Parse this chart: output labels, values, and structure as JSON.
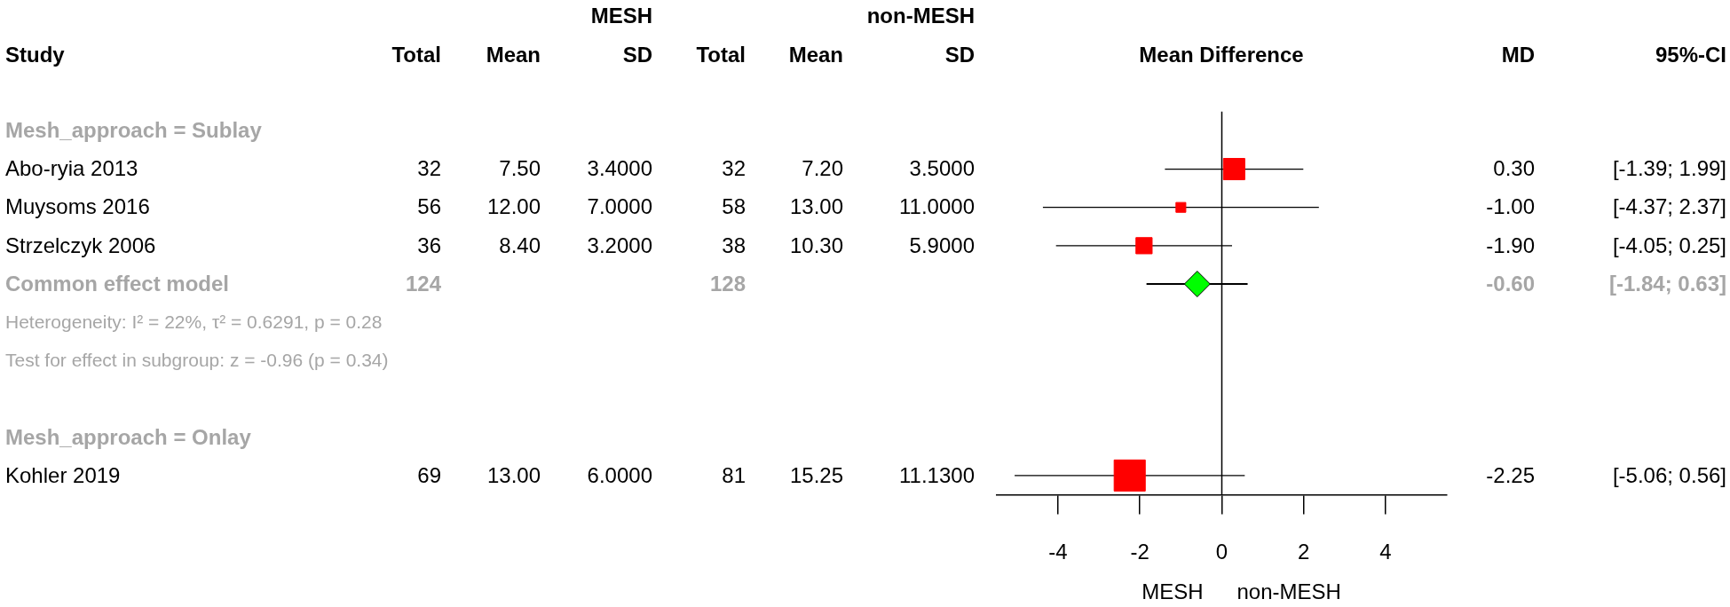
{
  "chart_data": [
    {
      "type": "other",
      "title": "MESH",
      "ylabel": "Study",
      "categories": [
        "Total",
        "Mean",
        "SD"
      ],
      "y_categories": [
        "Mesh_approach = Sublay",
        "Abo-ryia 2013",
        "Muysoms 2016",
        "Strzelczyk 2006",
        "Common effect model",
        "Mesh_approach = Onlay",
        "Kohler 2019"
      ],
      "cell_labels": [
        [
          null,
          null,
          null
        ],
        [
          "32",
          "7.50",
          "3.4000"
        ],
        [
          "56",
          "12.00",
          "7.0000"
        ],
        [
          "36",
          "8.40",
          "3.2000"
        ],
        [
          "124",
          null,
          null
        ],
        [
          null,
          null,
          null
        ],
        [
          "69",
          "13.00",
          "6.0000"
        ]
      ],
      "annotations": [
        "Heterogeneity: I² = 22%, τ² = 0.6291, p = 0.28",
        "Test for effect in subgroup: z = -0.96 (p = 0.34)"
      ]
    },
    {
      "type": "other",
      "title": "non-MESH",
      "categories": [
        "Total",
        "Mean",
        "SD"
      ],
      "cell_labels": [
        [
          null,
          null,
          null
        ],
        [
          "32",
          "7.20",
          "3.5000"
        ],
        [
          "58",
          "13.00",
          "11.0000"
        ],
        [
          "38",
          "10.30",
          "5.9000"
        ],
        [
          "128",
          null,
          null
        ],
        [
          null,
          null,
          null
        ],
        [
          "81",
          "15.25",
          "11.1300"
        ]
      ]
    },
    {
      "type": "scatter",
      "title": "Mean Difference",
      "orientation": "horizontal",
      "categories": [
        null,
        null,
        null,
        null,
        null,
        null,
        null,
        null,
        null,
        null
      ],
      "series": [
        {
          "color": "#ff0000",
          "marker": "square",
          "values": [
            null,
            0.3,
            -1.0,
            -1.9,
            null,
            null,
            null,
            null,
            null,
            -2.25
          ],
          "errors": [
            null,
            [
              -1.39,
              1.99
            ],
            [
              -4.37,
              2.37
            ],
            [
              -4.05,
              0.25
            ],
            null,
            null,
            null,
            null,
            null,
            [
              -5.06,
              0.56
            ]
          ],
          "sizes": [
            null,
            0.47,
            0.1,
            0.27,
            null,
            null,
            null,
            null,
            null,
            1
          ]
        },
        {
          "color": "#00ff00",
          "marker": "diamond",
          "values": [
            null,
            null,
            null,
            null,
            -0.6,
            null,
            null,
            null,
            null,
            null
          ],
          "errors": [
            null,
            null,
            null,
            null,
            [
              -1.84,
              0.63
            ],
            null,
            null,
            null,
            null,
            null
          ]
        }
      ],
      "xlim": [
        -5.5,
        5.5
      ],
      "xticks": [
        -4,
        -2,
        0,
        2,
        4
      ],
      "ref_lines": [
        {
          "axis": "x",
          "value": 0,
          "color": "#000000"
        }
      ],
      "annotations": [
        "MESH",
        "non-MESH"
      ]
    },
    {
      "type": "other",
      "categories": [
        "MD",
        "95%-CI"
      ],
      "cell_labels": [
        [
          null,
          null
        ],
        [
          "0.30",
          "[-1.39; 1.99]"
        ],
        [
          "-1.00",
          "[-4.37; 2.37]"
        ],
        [
          "-1.90",
          "[-4.05; 0.25]"
        ],
        [
          "-0.60",
          "[-1.84; 0.63]"
        ],
        [
          null,
          null
        ],
        [
          "-2.25",
          "[-5.06; 0.56]"
        ]
      ]
    }
  ]
}
